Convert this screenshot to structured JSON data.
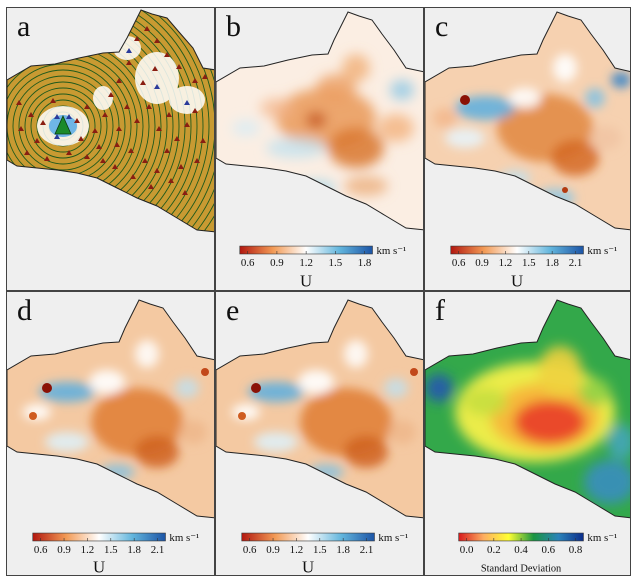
{
  "panels": [
    {
      "id": "a",
      "label": "a",
      "kind": "stations"
    },
    {
      "id": "b",
      "label": "b",
      "kind": "velocity",
      "colorbar": {
        "ticks": [
          "0.6",
          "0.9",
          "1.2",
          "1.5",
          "1.8"
        ],
        "unit": "km s⁻¹",
        "title": "U",
        "colors": [
          "#b2170f",
          "#f29a55",
          "#ffffff",
          "#63b6dd",
          "#1c54a6"
        ]
      }
    },
    {
      "id": "c",
      "label": "c",
      "kind": "velocity",
      "colorbar": {
        "ticks": [
          "0.6",
          "0.9",
          "1.2",
          "1.5",
          "1.8",
          "2.1"
        ],
        "unit": "km s⁻¹",
        "title": "U",
        "colors": [
          "#b2170f",
          "#f29a55",
          "#ffffff",
          "#63b6dd",
          "#1c54a6"
        ]
      }
    },
    {
      "id": "d",
      "label": "d",
      "kind": "velocity",
      "colorbar": {
        "ticks": [
          "0.6",
          "0.9",
          "1.2",
          "1.5",
          "1.8",
          "2.1"
        ],
        "unit": "km s⁻¹",
        "title": "U",
        "colors": [
          "#b2170f",
          "#f29a55",
          "#ffffff",
          "#63b6dd",
          "#1c54a6"
        ]
      }
    },
    {
      "id": "e",
      "label": "e",
      "kind": "velocity",
      "colorbar": {
        "ticks": [
          "0.6",
          "0.9",
          "1.2",
          "1.5",
          "1.8",
          "2.1"
        ],
        "unit": "km s⁻¹",
        "title": "U",
        "colors": [
          "#b2170f",
          "#f29a55",
          "#ffffff",
          "#63b6dd",
          "#1c54a6"
        ]
      }
    },
    {
      "id": "f",
      "label": "f",
      "kind": "stddev",
      "colorbar": {
        "ticks": [
          "0.0",
          "0.2",
          "0.4",
          "0.6",
          "0.8"
        ],
        "unit": "km s⁻¹",
        "title": "Standard Deviation",
        "colors": [
          "#d7191c",
          "#fdae61",
          "#ffff33",
          "#1a9641",
          "#2b83ba",
          "#0b2c8a"
        ]
      }
    }
  ]
}
